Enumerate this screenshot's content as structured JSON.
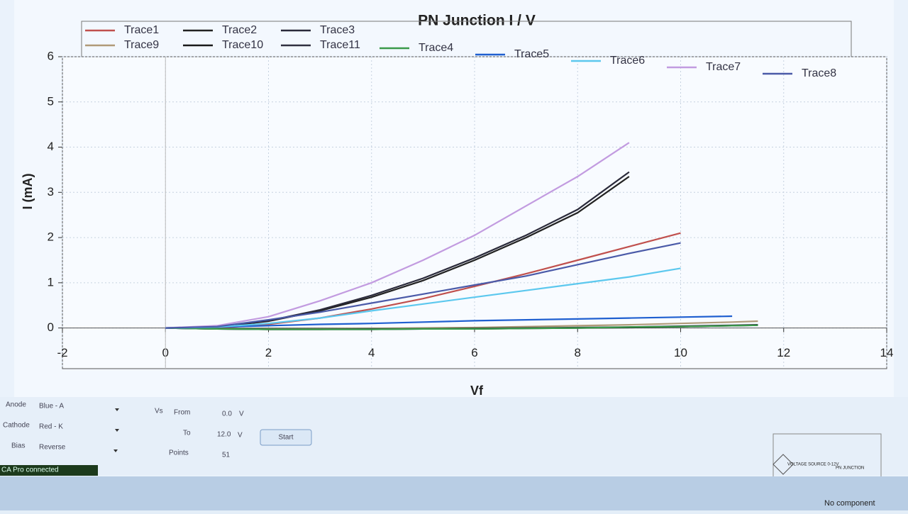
{
  "chart_data": {
    "type": "line",
    "title": "PN Junction I / V",
    "x_label": "Vf",
    "y_label": "I (mA)",
    "x": [
      0,
      1,
      2,
      3,
      4,
      5,
      6,
      7,
      8,
      9,
      10,
      11,
      11.5
    ],
    "xlim": [
      -2,
      14
    ],
    "xticks": [
      -2,
      0,
      2,
      4,
      6,
      8,
      10,
      12,
      14
    ],
    "ylim": [
      -0.9,
      6
    ],
    "yticks": [
      0,
      1,
      2,
      3,
      4,
      5,
      6
    ],
    "grid": true,
    "series": [
      {
        "name": "Trace1",
        "color": "#c0504d",
        "values": [
          0,
          0,
          0.08,
          0.22,
          0.42,
          0.65,
          0.92,
          1.2,
          1.5,
          1.8,
          2.1,
          null,
          null
        ]
      },
      {
        "name": "Trace9",
        "color": "#b09a78",
        "values": [
          0,
          -0.02,
          -0.02,
          -0.02,
          -0.01,
          0,
          0.01,
          0.03,
          0.05,
          0.07,
          0.1,
          0.13,
          0.15
        ]
      },
      {
        "name": "Trace2",
        "color": "#222222",
        "values": [
          0,
          0.02,
          0.15,
          0.38,
          0.68,
          1.05,
          1.5,
          2.0,
          2.55,
          3.35,
          null,
          null,
          null
        ]
      },
      {
        "name": "Trace10",
        "color": "#1a1a1a",
        "values": [
          0,
          -0.02,
          -0.03,
          -0.03,
          -0.03,
          -0.02,
          -0.02,
          -0.01,
          0,
          0.01,
          0.03,
          0.05,
          0.06
        ]
      },
      {
        "name": "Trace3",
        "color": "#2a2a3a",
        "values": [
          0,
          0.02,
          0.16,
          0.4,
          0.72,
          1.1,
          1.55,
          2.05,
          2.62,
          3.45,
          null,
          null,
          null
        ]
      },
      {
        "name": "Trace11",
        "color": "#303040",
        "values": [
          0,
          -0.02,
          -0.03,
          -0.03,
          -0.02,
          -0.02,
          -0.01,
          0,
          0.01,
          0.02,
          0.04,
          0.06,
          0.07
        ]
      },
      {
        "name": "Trace4",
        "color": "#3a9a4a",
        "values": [
          0,
          -0.02,
          -0.03,
          -0.03,
          -0.03,
          -0.02,
          -0.02,
          -0.01,
          0,
          0.02,
          0.03,
          0.05,
          0.06
        ]
      },
      {
        "name": "Trace5",
        "color": "#1f5fd0",
        "values": [
          0,
          0.02,
          0.05,
          0.08,
          0.1,
          0.13,
          0.16,
          0.18,
          0.2,
          0.22,
          0.24,
          0.26,
          null
        ]
      },
      {
        "name": "Trace6",
        "color": "#5cc8ee",
        "values": [
          0,
          0.02,
          0.1,
          0.22,
          0.38,
          0.53,
          0.68,
          0.83,
          0.98,
          1.13,
          1.32,
          null,
          null
        ]
      },
      {
        "name": "Trace7",
        "color": "#c29be0",
        "values": [
          0,
          0.05,
          0.25,
          0.6,
          1.0,
          1.5,
          2.05,
          2.7,
          3.35,
          4.1,
          null,
          null,
          null
        ]
      },
      {
        "name": "Trace8",
        "color": "#4a5aa8",
        "values": [
          0,
          0.03,
          0.18,
          0.35,
          0.55,
          0.75,
          0.95,
          1.15,
          1.4,
          1.65,
          1.88,
          null,
          null
        ]
      }
    ]
  },
  "controls": {
    "anode": {
      "label": "Anode",
      "value": "Blue - A"
    },
    "cathode": {
      "label": "Cathode",
      "value": "Red - K"
    },
    "bias": {
      "label": "Bias",
      "value": "Reverse"
    },
    "vs": "Vs",
    "from": {
      "label": "From",
      "value": "0.0",
      "unit": "V"
    },
    "to": {
      "label": "To",
      "value": "12.0",
      "unit": "V"
    },
    "points": {
      "label": "Points",
      "value": "51"
    },
    "start": "Start"
  },
  "status": {
    "connection": "CA Pro connected",
    "component": "No component"
  },
  "circuit": {
    "source": "VOLTAGE SOURCE 0-12V",
    "junction": "PN JUNCTION"
  }
}
